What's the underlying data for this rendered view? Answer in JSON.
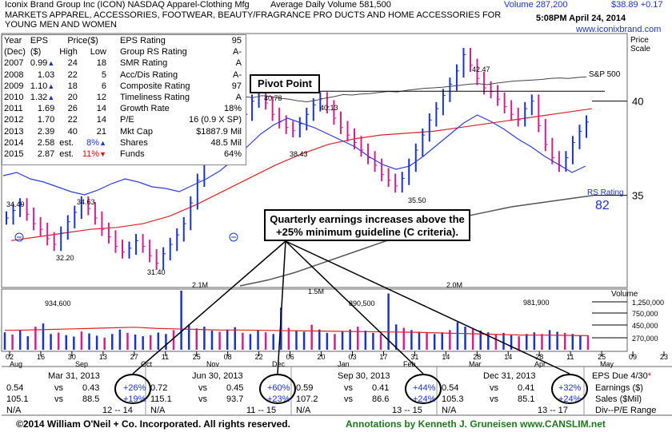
{
  "header": {
    "company_line": "Iconix Brand Group Inc    (ICON) NASDAQ Apparel-Clothing Mfg",
    "avg_volume": "Average Daily Volume 581,500",
    "volume": "Volume 287,200",
    "price_change": "$38.89 +0.17",
    "description_1": "MARKETS APPAREL, ACCESSORIES, FOOTWEAR, BEAUTY/FRAGRANCE PRO DUCTS AND HOME ACCESSORIES FOR",
    "description_2": "YOUNG MEN AND WOMEN",
    "timestamp": "5:08PM  April 24, 2014",
    "website": "www.iconixbrand.com",
    "price_scale_1": "Price",
    "price_scale_2": "Scale"
  },
  "eps_table": {
    "headers": [
      "Year",
      "EPS",
      "Price($)",
      "",
      "(Dec)",
      "($)",
      "High",
      "Low"
    ],
    "rows": [
      {
        "year": "2007",
        "eps": "0.99",
        "arrow": "up",
        "high": "24",
        "low": "18"
      },
      {
        "year": "2008",
        "eps": "1.03",
        "arrow": "",
        "high": "22",
        "low": "5"
      },
      {
        "year": "2009",
        "eps": "1.10",
        "arrow": "up",
        "high": "18",
        "low": "6"
      },
      {
        "year": "2010",
        "eps": "1.32",
        "arrow": "up",
        "high": "20",
        "low": "12"
      },
      {
        "year": "2011",
        "eps": "1.69",
        "arrow": "",
        "high": "26",
        "low": "14"
      },
      {
        "year": "2012",
        "eps": "1.70",
        "arrow": "",
        "high": "22",
        "low": "14"
      },
      {
        "year": "2013",
        "eps": "2.39",
        "arrow": "",
        "high": "40",
        "low": "21"
      },
      {
        "year": "2014",
        "eps": "2.58",
        "est": "est.",
        "pct": "8%",
        "arrow": "up"
      },
      {
        "year": "2015",
        "eps": "2.87",
        "est": "est.",
        "pct": "11%",
        "arrow": "down"
      }
    ],
    "ratings": [
      {
        "label": "EPS Rating",
        "value": "95"
      },
      {
        "label": "Group RS Rating",
        "value": "A-"
      },
      {
        "label": "SMR Rating",
        "value": "A"
      },
      {
        "label": "Acc/Dis Rating",
        "value": "A-"
      },
      {
        "label": "Composite Rating",
        "value": "97"
      },
      {
        "label": "Timeliness Rating",
        "value": "A"
      },
      {
        "label": "Growth Rate",
        "value": "18%"
      },
      {
        "label": "P/E",
        "value": "16 (0.9 X SP)"
      },
      {
        "label": "Mkt Cap",
        "value": "$1887.9 Mil"
      },
      {
        "label": "Shares",
        "value": "48.5 Mil"
      },
      {
        "label": "Funds",
        "value": "64%"
      }
    ]
  },
  "annotations": {
    "pivot": "Pivot Point",
    "earnings_1": "Quarterly earnings increases above the",
    "earnings_2": "+25% minimum guideline (C criteria).",
    "sp500": "S&P 500",
    "rs_label": "RS Rating",
    "rs_value": "82",
    "vol_label": "Volume"
  },
  "quarters": [
    {
      "period": "Mar 31, 2013",
      "eps_a": "0.54",
      "eps_b": "0.43",
      "eps_pct": "+26%",
      "sales_a": "105.1",
      "sales_b": "88.5",
      "sales_pct": "+19%",
      "na": "N/A",
      "range": "12 -- 14"
    },
    {
      "period": "Jun 30, 2013",
      "eps_a": "0.72",
      "eps_b": "0.45",
      "eps_pct": "+60%",
      "sales_a": "115.1",
      "sales_b": "93.7",
      "sales_pct": "+23%",
      "na": "N/A",
      "range": "11 -- 15"
    },
    {
      "period": "Sep 30, 2013",
      "eps_a": "0.59",
      "eps_b": "0.41",
      "eps_pct": "+44%",
      "sales_a": "107.2",
      "sales_b": "86.6",
      "sales_pct": "+24%",
      "na": "N/A",
      "range": "13 -- 15"
    },
    {
      "period": "Dec 31, 2013",
      "eps_a": "0.54",
      "eps_b": "0.41",
      "eps_pct": "+32%",
      "sales_a": "105.3",
      "sales_b": "85.1",
      "sales_pct": "+24%",
      "na": "N/A",
      "range": "13 -- 17"
    }
  ],
  "quarter_legend": {
    "due": "EPS Due 4/30",
    "earnings": "Earnings ($)",
    "sales": "Sales ($Mil)",
    "pe": "Div--P/E Range",
    "vs": "vs"
  },
  "footer": {
    "left": "©2014 William O'Neil + Co. Incorporated. All rights reserved.",
    "right": "Annotations by Kenneth J. Gruneisen www.CANSLIM.net"
  },
  "chart_data": {
    "type": "line",
    "title": "",
    "price_axis": {
      "ticks": [
        35,
        40
      ],
      "ylim": [
        30.2,
        43.5
      ]
    },
    "volume_axis": {
      "ticks": [
        "1,250,000",
        "750,000",
        "450,000",
        "270,000"
      ]
    },
    "x_dates": [
      "02",
      "16",
      "30",
      "13",
      "27",
      "11",
      "25",
      "08",
      "22",
      "06",
      "20",
      "03",
      "17",
      "31",
      "14",
      "28",
      "14",
      "28",
      "11",
      "25",
      "09",
      "23"
    ],
    "months": [
      "Aug",
      "Sep",
      "Oct",
      "Nov",
      "Dec",
      "Jan",
      "Feb",
      "Mar",
      "Apr",
      "May"
    ],
    "price_labels": [
      "34.49",
      "34.63",
      "32.20",
      "31.40",
      "40.78",
      "38.43",
      "40.13",
      "35.50",
      "42.47"
    ],
    "volume_labels": [
      "934,600",
      "2.1M",
      "1.5M",
      "890,500",
      "2.0M",
      "981,900"
    ],
    "price_series": [
      33.8,
      34.2,
      34.5,
      34.0,
      33.5,
      33.2,
      32.7,
      32.4,
      33.0,
      33.6,
      34.1,
      34.6,
      34.3,
      33.8,
      33.2,
      32.8,
      32.3,
      32.0,
      32.2,
      32.6,
      32.3,
      31.8,
      31.4,
      31.9,
      32.4,
      32.9,
      33.5,
      34.6,
      35.8,
      37.0,
      38.2,
      39.0,
      39.6,
      38.9,
      38.6,
      39.3,
      40.0,
      40.78,
      39.9,
      39.3,
      38.9,
      38.6,
      38.43,
      38.8,
      39.3,
      39.8,
      40.13,
      39.7,
      39.1,
      38.6,
      38.2,
      37.8,
      37.4,
      37.0,
      36.6,
      36.1,
      35.8,
      35.5,
      35.9,
      36.6,
      37.4,
      38.2,
      39.0,
      39.6,
      40.3,
      40.9,
      41.6,
      42.47,
      41.9,
      41.2,
      40.7,
      40.5,
      40.1,
      39.7,
      39.3,
      39.0,
      39.6,
      40.0,
      38.7,
      37.7,
      37.0,
      36.6,
      37.0,
      37.8,
      38.4,
      38.89
    ],
    "sp500_series": [
      0.6,
      0.58,
      0.62,
      0.6,
      0.57,
      0.55,
      0.52,
      0.5,
      0.53,
      0.57,
      0.6,
      0.64,
      0.63,
      0.65,
      0.66,
      0.68,
      0.7,
      0.69,
      0.72,
      0.74,
      0.76,
      0.77,
      0.78,
      0.8,
      0.82,
      0.84,
      0.85,
      0.83,
      0.86,
      0.88,
      0.9,
      0.91,
      0.92,
      0.93,
      0.95,
      0.96,
      0.95,
      0.97,
      0.98
    ],
    "rs_series": [
      0.4,
      0.42,
      0.38,
      0.36,
      0.33,
      0.3,
      0.28,
      0.31,
      0.35,
      0.38,
      0.36,
      0.33,
      0.32,
      0.3,
      0.34,
      0.38,
      0.43,
      0.5,
      0.58,
      0.66,
      0.72,
      0.76,
      0.73,
      0.7,
      0.66,
      0.62,
      0.58,
      0.52,
      0.47,
      0.44,
      0.46,
      0.52,
      0.59,
      0.66,
      0.73,
      0.78,
      0.74,
      0.69,
      0.63,
      0.58,
      0.52,
      0.47,
      0.42,
      0.46
    ],
    "volume_series": [
      620,
      540,
      700,
      480,
      820,
      934,
      560,
      610,
      520,
      470,
      650,
      580,
      500,
      430,
      560,
      720,
      600,
      540,
      480,
      520,
      610,
      560,
      700,
      2100,
      900,
      760,
      820,
      680,
      640,
      720,
      800,
      600,
      560,
      700,
      620,
      560,
      1500,
      780,
      690,
      640,
      890,
      720,
      600,
      560,
      640,
      720,
      820,
      680,
      600,
      560,
      2000,
      900,
      780,
      700,
      640,
      600,
      560,
      620,
      700,
      981,
      820,
      760,
      680,
      620,
      560,
      600,
      520,
      480,
      560,
      620,
      560,
      700,
      640,
      600,
      560,
      520,
      480
    ],
    "vol_avg": [
      690,
      700,
      720,
      740,
      760,
      780,
      800,
      760,
      740,
      720,
      700,
      700,
      690,
      680,
      670,
      660,
      650,
      640,
      630,
      620,
      600,
      580,
      560,
      540,
      520,
      520,
      510,
      500
    ],
    "ma50": [
      32.6,
      32.8,
      33.0,
      33.2,
      33.3,
      33.5,
      33.9,
      34.5,
      35.2,
      35.9,
      36.6,
      37.2,
      37.7,
      38.0,
      38.2,
      38.3,
      38.4,
      38.6,
      38.8,
      39.0,
      39.2,
      39.4,
      39.6
    ],
    "ma200": [
      30.2,
      30.5,
      30.9,
      31.4,
      31.9,
      32.4,
      32.9,
      33.4,
      33.8,
      34.1,
      34.4,
      34.6,
      34.8,
      35.0
    ]
  }
}
